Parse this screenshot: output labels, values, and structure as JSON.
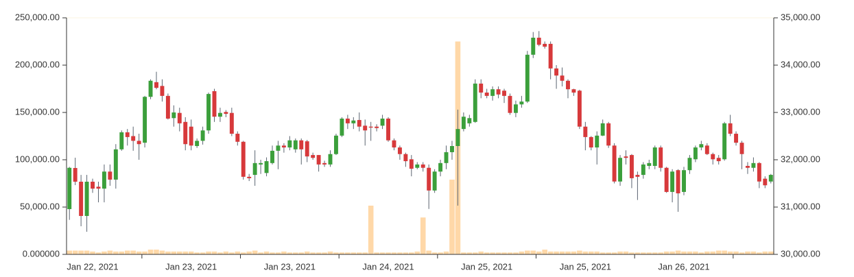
{
  "chart_data": {
    "type": "candlestick",
    "x_labels": [
      "Jan 22, 2021",
      "Jan 23, 2021",
      "Jan 23, 2021",
      "Jan 24, 2021",
      "Jan 25, 2021",
      "Jan 25, 2021",
      "Jan 26, 2021"
    ],
    "open": [
      30957,
      31826,
      31536,
      30812,
      31536,
      31430,
      31390,
      31750,
      31580,
      32220,
      32580,
      32500,
      32400,
      32360,
      33330,
      33640,
      33560,
      33350,
      32880,
      32990,
      32800,
      32700,
      32290,
      32400,
      32620,
      33450,
      32910,
      33010,
      32990,
      32550,
      32380,
      31640,
      31680,
      31900,
      31720,
      31930,
      32190,
      32300,
      32260,
      32220,
      32410,
      32390,
      32100,
      32100,
      31930,
      31900,
      32120,
      32510,
      32870,
      32770,
      32840,
      32720,
      32700,
      32700,
      32720,
      32870,
      32410,
      32260,
      32120,
      32010,
      31830,
      31900,
      31830,
      31350,
      31750,
      31930,
      32160,
      32290,
      32650,
      32770,
      32800,
      33610,
      33420,
      33350,
      33490,
      33460,
      33350,
      32990,
      33170,
      33230,
      34220,
      34580,
      34450,
      34450,
      33930,
      33780,
      33670,
      33490,
      33460,
      32700,
      32480,
      32260,
      32510,
      32770,
      32300,
      31540,
      32070,
      32100,
      31680,
      31680,
      31870,
      31870,
      32260,
      31830,
      31320,
      31780,
      31320,
      31780,
      32010,
      32260,
      32300,
      32120,
      32040,
      32010,
      32770,
      32550,
      32360,
      31870,
      31830,
      31930,
      31600,
      31540
    ],
    "high": [
      31850,
      32043,
      31680,
      31680,
      31600,
      31536,
      31900,
      31900,
      32330,
      32620,
      32650,
      32700,
      32550,
      33350,
      33700,
      33860,
      33700,
      33400,
      33150,
      33100,
      32900,
      32850,
      32450,
      32700,
      33420,
      33500,
      33100,
      33050,
      33100,
      32600,
      32400,
      31700,
      32200,
      32000,
      32050,
      32300,
      32400,
      32350,
      32500,
      32450,
      32450,
      32420,
      32150,
      32100,
      31980,
      32200,
      32550,
      32900,
      32950,
      32900,
      33000,
      32850,
      32800,
      32750,
      32950,
      32900,
      32450,
      32300,
      32150,
      32100,
      31950,
      31950,
      31900,
      31800,
      32000,
      32300,
      32400,
      33060,
      33000,
      32950,
      33700,
      33700,
      33500,
      33550,
      33550,
      33500,
      33400,
      33250,
      33350,
      34300,
      34700,
      34720,
      34500,
      34500,
      34000,
      33950,
      33700,
      33500,
      33480,
      32800,
      32500,
      32600,
      32850,
      32800,
      32350,
      32100,
      32200,
      32120,
      31750,
      31950,
      32000,
      32300,
      32300,
      31850,
      31800,
      31800,
      31850,
      32100,
      32300,
      32400,
      32350,
      32150,
      32100,
      32800,
      32950,
      32600,
      32400,
      31950,
      32050,
      31950,
      31650,
      31700
    ],
    "low": [
      30730,
      31464,
      30594,
      30478,
      31300,
      31100,
      31100,
      31450,
      31390,
      32190,
      32300,
      32190,
      32000,
      32260,
      33280,
      33490,
      33230,
      32850,
      32700,
      32600,
      32200,
      32200,
      32250,
      32320,
      32550,
      32800,
      32800,
      32900,
      32500,
      32300,
      31580,
      31550,
      31450,
      31700,
      31650,
      31900,
      31800,
      32150,
      32200,
      32150,
      31900,
      31950,
      32000,
      31750,
      31850,
      31850,
      32100,
      32480,
      32650,
      32650,
      32600,
      32300,
      32400,
      32600,
      32650,
      32380,
      32200,
      32000,
      31850,
      31650,
      31800,
      31750,
      30960,
      31300,
      31650,
      31800,
      32000,
      31030,
      32600,
      32700,
      32780,
      33300,
      33300,
      33250,
      33300,
      33200,
      32950,
      32900,
      33100,
      33200,
      34150,
      34400,
      34350,
      33700,
      33500,
      33550,
      33300,
      33350,
      32650,
      32200,
      32200,
      31900,
      32500,
      32250,
      31500,
      31450,
      31900,
      31400,
      31150,
      31600,
      31800,
      31800,
      31750,
      31300,
      31100,
      30900,
      31250,
      31700,
      31950,
      32200,
      32100,
      31900,
      31900,
      31980,
      32500,
      32300,
      31800,
      31700,
      31750,
      31400,
      31400,
      31500
    ],
    "close": [
      31830,
      31536,
      30812,
      31536,
      31390,
      31390,
      31750,
      31580,
      32220,
      32580,
      32480,
      32400,
      32330,
      33330,
      33670,
      33520,
      33350,
      32870,
      33000,
      32770,
      32330,
      32300,
      32400,
      32620,
      33390,
      32910,
      32990,
      32970,
      32550,
      32380,
      31640,
      31610,
      31930,
      31930,
      31970,
      32190,
      32300,
      32260,
      32410,
      32410,
      32220,
      32070,
      32040,
      31900,
      31900,
      32120,
      32510,
      32870,
      32770,
      32830,
      32700,
      32620,
      32680,
      32670,
      32870,
      32410,
      32260,
      32120,
      31970,
      31810,
      31900,
      31830,
      31350,
      31750,
      31930,
      32160,
      32290,
      32650,
      32910,
      32880,
      33610,
      33420,
      33350,
      33490,
      33380,
      33350,
      32990,
      33170,
      33230,
      34220,
      34580,
      34430,
      34390,
      33930,
      33780,
      33670,
      33490,
      33420,
      32700,
      32480,
      32260,
      32510,
      32770,
      32300,
      31540,
      32040,
      32040,
      31610,
      31640,
      31900,
      31930,
      32260,
      31830,
      31320,
      31750,
      31290,
      31780,
      32040,
      32260,
      32330,
      32120,
      32010,
      31970,
      32770,
      32550,
      32360,
      32120,
      31830,
      31930,
      31540,
      31460,
      31680
    ],
    "volume": [
      4000,
      4000,
      4000,
      4000,
      3000,
      2000,
      3000,
      4000,
      3000,
      3000,
      4000,
      4000,
      3000,
      3000,
      5000,
      5000,
      4000,
      3000,
      3000,
      3000,
      3000,
      3000,
      2000,
      2000,
      3000,
      3000,
      2000,
      3000,
      2000,
      3000,
      2000,
      3000,
      4000,
      2000,
      3000,
      2000,
      2000,
      3000,
      2000,
      2000,
      2000,
      3000,
      2000,
      2000,
      2000,
      3000,
      2000,
      2000,
      2000,
      2000,
      2000,
      2000,
      51500,
      2000,
      2000,
      2000,
      2000,
      2000,
      2000,
      2000,
      3000,
      39000,
      4000,
      2000,
      2000,
      3000,
      79000,
      225000,
      2000,
      2000,
      2000,
      3000,
      2000,
      2000,
      2000,
      2000,
      2000,
      2000,
      3000,
      4000,
      4000,
      3000,
      5000,
      3000,
      3000,
      3000,
      3000,
      3000,
      4000,
      3000,
      3000,
      3000,
      2000,
      2000,
      2000,
      3000,
      3000,
      2000,
      2000,
      2000,
      2000,
      2000,
      2000,
      3000,
      3000,
      4000,
      3000,
      3000,
      3000,
      2000,
      3000,
      3000,
      4000,
      4000,
      3000,
      3000,
      2000,
      3000,
      3000,
      2000,
      3000,
      3000
    ],
    "ylim": [
      0,
      250000
    ],
    "yticks": [
      {
        "value": 0,
        "label": "0.000000"
      },
      {
        "value": 50000,
        "label": "50,000.00"
      },
      {
        "value": 100000,
        "label": "100,000.00"
      },
      {
        "value": 150000,
        "label": "150,000.00"
      },
      {
        "value": 200000,
        "label": "200,000.00"
      },
      {
        "value": 250000,
        "label": "250,000.00"
      }
    ],
    "y2lim": [
      30000,
      35000
    ],
    "y2ticks": [
      {
        "value": 30000,
        "label": "30,000.00"
      },
      {
        "value": 31000,
        "label": "31,000.00"
      },
      {
        "value": 32000,
        "label": "32,000.00"
      },
      {
        "value": 33000,
        "label": "33,000.00"
      },
      {
        "value": 34000,
        "label": "34,000.00"
      },
      {
        "value": 35000,
        "label": "35,000.00"
      }
    ],
    "up_color": "#3b9f3b",
    "down_color": "#d7393b",
    "wick_color": "#5a6470",
    "volume_color": "#ffd8a8"
  }
}
